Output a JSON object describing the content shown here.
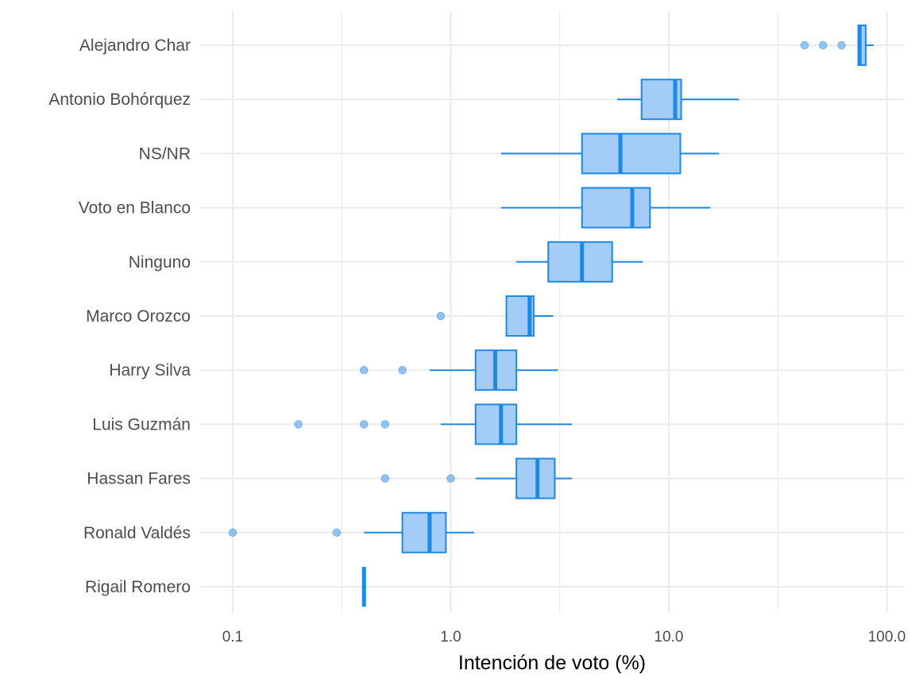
{
  "chart_data": {
    "type": "boxplot",
    "orientation": "horizontal",
    "xlabel": "Intención de voto (%)",
    "xscale": "log10",
    "xlim": [
      0.07,
      125
    ],
    "xticks": [
      {
        "value": 0.1,
        "label": "0.1"
      },
      {
        "value": 1,
        "label": "1.0"
      },
      {
        "value": 10,
        "label": "10.0"
      },
      {
        "value": 100,
        "label": "100.0"
      }
    ],
    "grid": true,
    "colors": {
      "box_fill": "#a3cdf7",
      "box_stroke": "#1e88e5",
      "outlier": "#6fb0ee",
      "grid": "#ebebeb"
    },
    "categories": [
      {
        "name": "Alejandro Char",
        "min": 74,
        "q1": 74,
        "median": 75,
        "q3": 80,
        "max": 87,
        "outliers": [
          42,
          51,
          62
        ]
      },
      {
        "name": "Antonio Bohórquez",
        "min": 5.8,
        "q1": 7.5,
        "median": 10.7,
        "q3": 11.4,
        "max": 21,
        "outliers": []
      },
      {
        "name": "NS/NR",
        "min": 1.7,
        "q1": 4.0,
        "median": 6.0,
        "q3": 11.3,
        "max": 17,
        "outliers": []
      },
      {
        "name": "Voto en Blanco",
        "min": 1.7,
        "q1": 4.0,
        "median": 6.8,
        "q3": 8.2,
        "max": 15.5,
        "outliers": []
      },
      {
        "name": "Ninguno",
        "min": 2.0,
        "q1": 2.8,
        "median": 4.0,
        "q3": 5.5,
        "max": 7.6,
        "outliers": []
      },
      {
        "name": "Marco Orozco",
        "min": 1.8,
        "q1": 1.8,
        "median": 2.3,
        "q3": 2.4,
        "max": 2.95,
        "outliers": [
          0.9
        ]
      },
      {
        "name": "Harry Silva",
        "min": 0.8,
        "q1": 1.3,
        "median": 1.6,
        "q3": 2.0,
        "max": 3.1,
        "outliers": [
          0.4,
          0.6
        ]
      },
      {
        "name": "Luis Guzmán",
        "min": 0.9,
        "q1": 1.3,
        "median": 1.7,
        "q3": 2.0,
        "max": 3.6,
        "outliers": [
          0.2,
          0.4,
          0.5
        ]
      },
      {
        "name": "Hassan Fares",
        "min": 1.3,
        "q1": 2.0,
        "median": 2.5,
        "q3": 3.0,
        "max": 3.6,
        "outliers": [
          0.5,
          1.0
        ]
      },
      {
        "name": "Ronald Valdés",
        "min": 0.4,
        "q1": 0.6,
        "median": 0.8,
        "q3": 0.95,
        "max": 1.28,
        "outliers": [
          0.1,
          0.3
        ]
      },
      {
        "name": "Rigail Romero",
        "min": 0.4,
        "q1": 0.4,
        "median": 0.4,
        "q3": 0.4,
        "max": 0.4,
        "outliers": []
      }
    ]
  }
}
